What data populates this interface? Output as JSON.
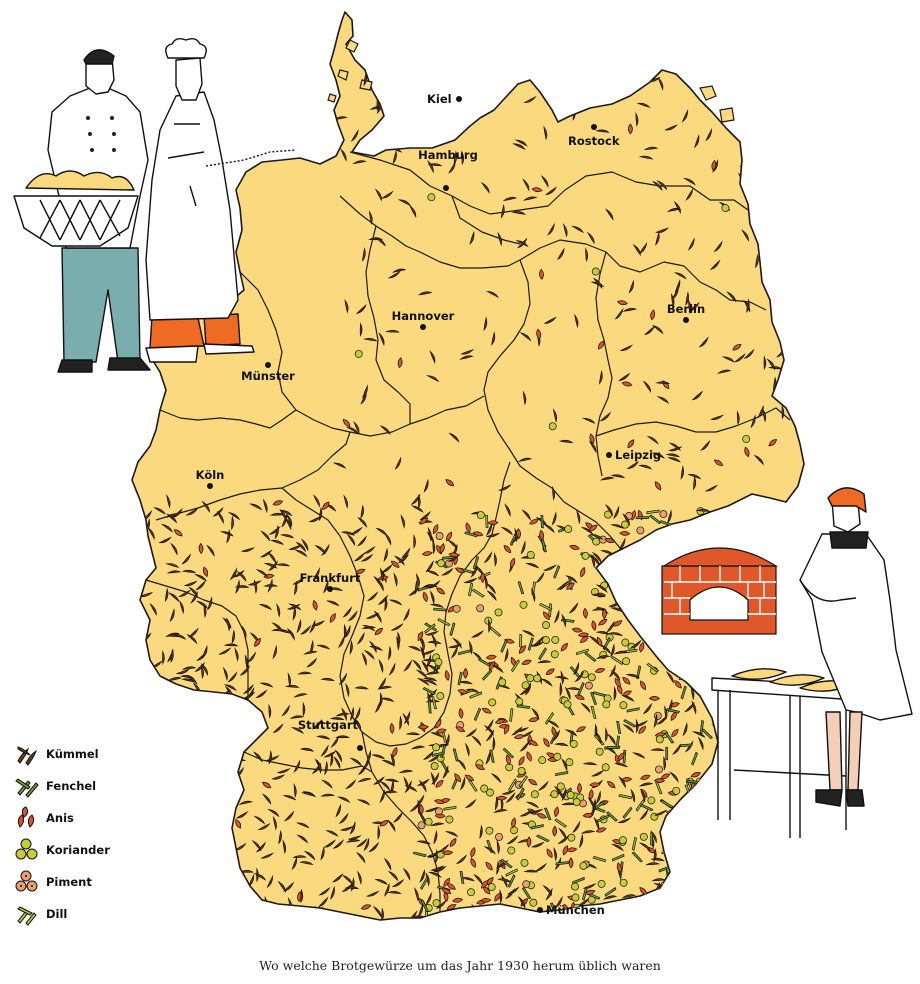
{
  "caption": "Wo welche Brotgewürze um das Jahr 1930 herum üblich waren",
  "colors": {
    "land": "#fbd97e",
    "border": "#1a1a1a",
    "kuemmel": "#6b3a1f",
    "fenchel": "#6aa03a",
    "anis": "#d9532b",
    "koriander": "#c7cc3a",
    "piment": "#e9a070",
    "dill": "#a6c83a",
    "trousers_blue": "#7aaeae",
    "trousers_orange": "#ef6a22",
    "oven_red": "#e0582a"
  },
  "cities": [
    {
      "name": "Kiel",
      "icon": "city-dot"
    },
    {
      "name": "Rostock",
      "icon": "city-dot"
    },
    {
      "name": "Hamburg",
      "icon": "city-dot"
    },
    {
      "name": "Berlin",
      "icon": "city-dot"
    },
    {
      "name": "Hannover",
      "icon": "city-dot"
    },
    {
      "name": "Münster",
      "icon": "city-dot"
    },
    {
      "name": "Leipzig",
      "icon": "city-dot"
    },
    {
      "name": "Köln",
      "icon": "city-dot"
    },
    {
      "name": "Frankfurt",
      "icon": "city-dot"
    },
    {
      "name": "Stuttgart",
      "icon": "city-dot"
    },
    {
      "name": "München",
      "icon": "city-dot"
    }
  ],
  "legend": [
    {
      "label": "Kümmel",
      "icon": "caraway-icon"
    },
    {
      "label": "Fenchel",
      "icon": "fennel-icon"
    },
    {
      "label": "Anis",
      "icon": "anise-icon"
    },
    {
      "label": "Koriander",
      "icon": "coriander-icon"
    },
    {
      "label": "Piment",
      "icon": "allspice-icon"
    },
    {
      "label": "Dill",
      "icon": "dill-icon"
    }
  ]
}
